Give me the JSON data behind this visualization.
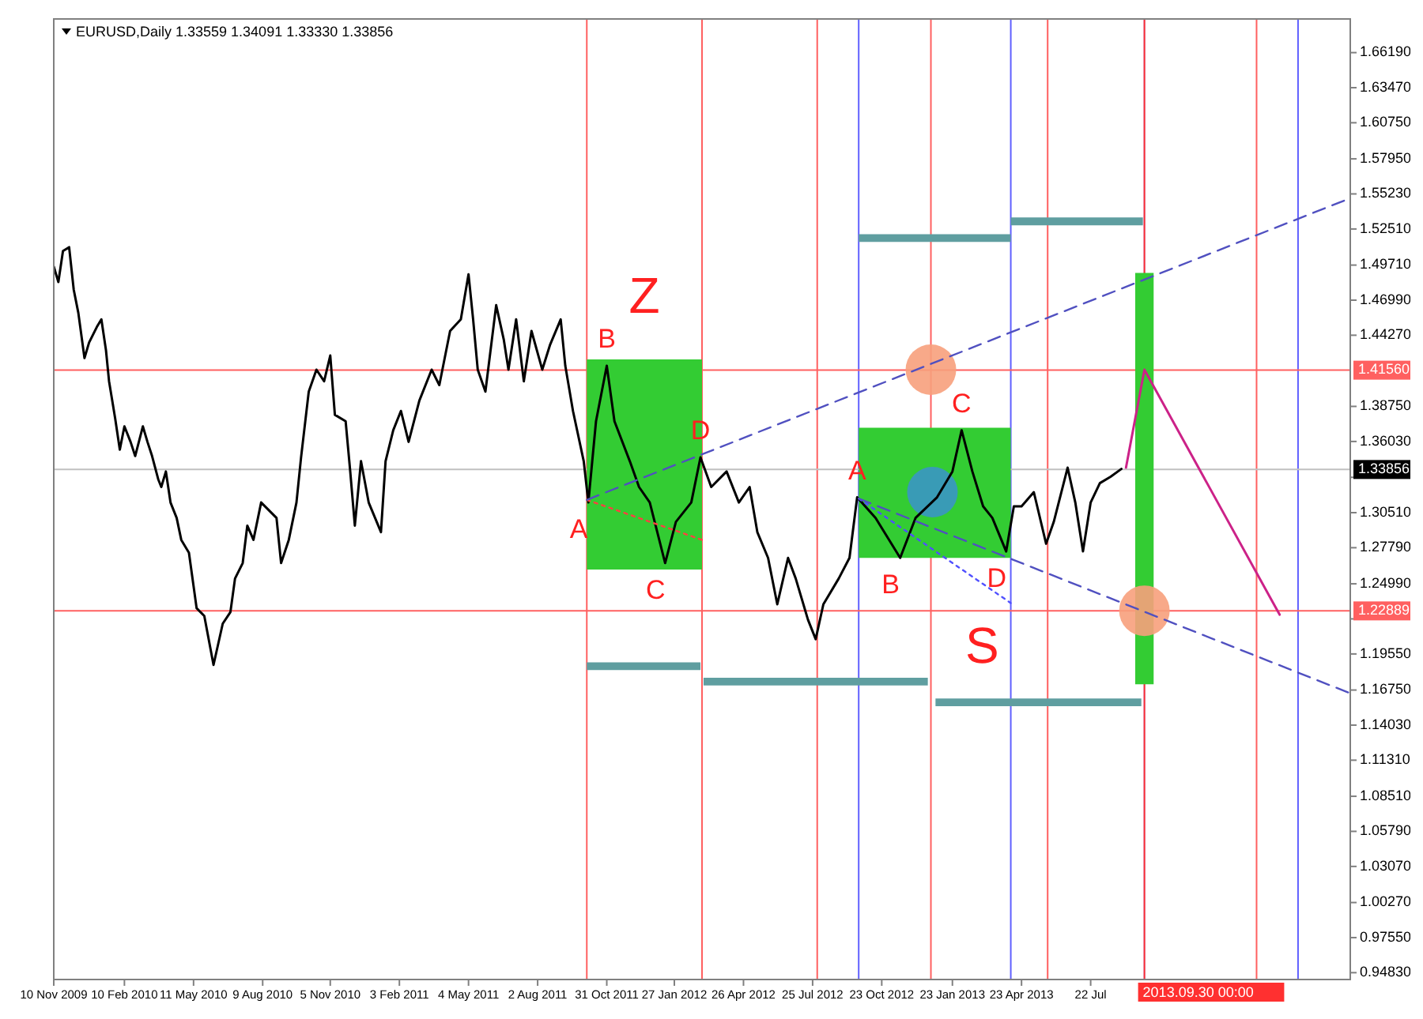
{
  "chart_data": {
    "type": "line",
    "title": "EURUSD,Daily  1.33559 1.34091 1.33330 1.33856",
    "xlim": [
      "2009-11-10",
      "2014-06-25"
    ],
    "ylim": [
      0.943,
      1.688
    ],
    "xticks": [
      {
        "value": "2009-11-10",
        "label": "10 Nov 2009"
      },
      {
        "value": "2010-02-10",
        "label": "10 Feb 2010"
      },
      {
        "value": "2010-05-11",
        "label": "11 May 2010"
      },
      {
        "value": "2010-08-09",
        "label": "9 Aug 2010"
      },
      {
        "value": "2010-11-05",
        "label": "5 Nov 2010"
      },
      {
        "value": "2011-02-03",
        "label": "3 Feb 2011"
      },
      {
        "value": "2011-05-04",
        "label": "4 May 2011"
      },
      {
        "value": "2011-08-02",
        "label": "2 Aug 2011"
      },
      {
        "value": "2011-10-31",
        "label": "31 Oct 2011"
      },
      {
        "value": "2012-01-27",
        "label": "27 Jan 2012"
      },
      {
        "value": "2012-04-26",
        "label": "26 Apr 2012"
      },
      {
        "value": "2012-07-25",
        "label": "25 Jul 2012"
      },
      {
        "value": "2012-10-23",
        "label": "23 Oct 2012"
      },
      {
        "value": "2013-01-23",
        "label": "23 Jan 2013"
      },
      {
        "value": "2013-04-23",
        "label": "23 Apr 2013"
      },
      {
        "value": "2013-07-22",
        "label": "22 Jul"
      }
    ],
    "yticks": [
      {
        "value": 0.9483,
        "label": "0.94830"
      },
      {
        "value": 0.9755,
        "label": "0.97550"
      },
      {
        "value": 1.0027,
        "label": "1.00270"
      },
      {
        "value": 1.0307,
        "label": "1.03070"
      },
      {
        "value": 1.0579,
        "label": "1.05790"
      },
      {
        "value": 1.0851,
        "label": "1.08510"
      },
      {
        "value": 1.1131,
        "label": "1.11310"
      },
      {
        "value": 1.1403,
        "label": "1.14030"
      },
      {
        "value": 1.1675,
        "label": "1.16750"
      },
      {
        "value": 1.1955,
        "label": "1.19550"
      },
      {
        "value": 1.2227,
        "label": null
      },
      {
        "value": 1.2499,
        "label": "1.24990"
      },
      {
        "value": 1.2779,
        "label": "1.27790"
      },
      {
        "value": 1.3051,
        "label": "1.30510"
      },
      {
        "value": 1.3325,
        "label": null
      },
      {
        "value": 1.3603,
        "label": "1.36030"
      },
      {
        "value": 1.3875,
        "label": "1.38750"
      },
      {
        "value": 1.4427,
        "label": "1.44270"
      },
      {
        "value": 1.4699,
        "label": "1.46990"
      },
      {
        "value": 1.4971,
        "label": "1.49710"
      },
      {
        "value": 1.5251,
        "label": "1.52510"
      },
      {
        "value": 1.5523,
        "label": "1.55230"
      },
      {
        "value": 1.5795,
        "label": "1.57950"
      },
      {
        "value": 1.6075,
        "label": "1.60750"
      },
      {
        "value": 1.6347,
        "label": "1.63470"
      },
      {
        "value": 1.6619,
        "label": "1.66190"
      }
    ],
    "ref_lines": [
      {
        "axis": "x",
        "value": "2011-10-05",
        "color": "#ff6060"
      },
      {
        "axis": "x",
        "value": "2012-03-03",
        "color": "#ff6060"
      },
      {
        "axis": "x",
        "value": "2012-07-31",
        "color": "#ff6060"
      },
      {
        "axis": "x",
        "value": "2012-12-26",
        "color": "#ff6060"
      },
      {
        "axis": "x",
        "value": "2013-05-27",
        "color": "#ff6060"
      },
      {
        "axis": "x",
        "value": "2014-02-23",
        "color": "#ff6060"
      },
      {
        "axis": "x",
        "value": "2012-09-23",
        "color": "#6060ff"
      },
      {
        "axis": "x",
        "value": "2013-04-09",
        "color": "#6060ff"
      },
      {
        "axis": "x",
        "value": "2014-04-18",
        "color": "#6060ff"
      },
      {
        "axis": "x",
        "value": "2013-09-30",
        "color": "#a0a0ff"
      },
      {
        "axis": "x",
        "value": "2013-09-30",
        "color": "#ff3030",
        "label": "2013.09.30 00:00"
      },
      {
        "axis": "y",
        "value": 1.4156,
        "color": "#ff6060",
        "label": "1.41560"
      },
      {
        "axis": "y",
        "value": 1.22889,
        "color": "#ff6060",
        "label": "1.22889"
      },
      {
        "axis": "y",
        "value": 1.33856,
        "color": "#c0c0c0",
        "label": "1.33856"
      }
    ],
    "annotations": [
      "Z",
      "S",
      {
        "text": "B",
        "x": "2011-10-31",
        "y": 1.419
      },
      {
        "text": "D",
        "x": "2012-03-01",
        "y": 1.348
      },
      {
        "text": "A",
        "x": "2011-10-07",
        "y": 1.313
      },
      {
        "text": "C",
        "x": "2012-01-15",
        "y": 1.266
      },
      {
        "text": "A",
        "x": "2012-09-21",
        "y": 1.317
      },
      {
        "text": "C",
        "x": "2013-02-04",
        "y": 1.369
      },
      {
        "text": "B",
        "x": "2012-11-16",
        "y": 1.27
      },
      {
        "text": "D",
        "x": "2013-04-03",
        "y": 1.275
      }
    ],
    "series": [
      {
        "type": "line",
        "color": "#33cc33",
        "x": [
          "2011-10-05",
          "2012-03-03"
        ],
        "values": [
          null,
          null
        ],
        "lower": [
          1.261,
          1.261
        ],
        "upper": [
          1.424,
          1.424
        ]
      },
      {
        "type": "line",
        "color": "#33cc33",
        "x": [
          "2012-09-23",
          "2013-04-09"
        ],
        "values": [
          null,
          null
        ],
        "lower": [
          1.27,
          1.27
        ],
        "upper": [
          1.371,
          1.371
        ]
      },
      {
        "type": "line",
        "color": "#33cc33",
        "x": [
          "2013-09-18",
          "2013-10-12"
        ],
        "values": [
          null,
          null
        ],
        "lower": [
          1.172,
          1.172
        ],
        "upper": [
          1.491,
          1.491
        ]
      },
      {
        "type": "scatter",
        "marker": "circle",
        "color": "#f7a07c",
        "x": [
          "2012-12-26"
        ],
        "values": [
          1.416
        ]
      },
      {
        "type": "scatter",
        "marker": "circle",
        "color": "#f7a07c",
        "x": [
          "2013-09-30"
        ],
        "values": [
          1.229
        ]
      },
      {
        "type": "scatter",
        "marker": "circle",
        "color": "#3a96c4",
        "x": [
          "2012-12-28"
        ],
        "values": [
          1.321
        ]
      },
      {
        "color": "#000000",
        "x": [
          "2009-11-10",
          "2009-11-16",
          "2009-11-22",
          "2009-11-30",
          "2009-12-06",
          "2009-12-12",
          "2009-12-20",
          "2009-12-26",
          "2010-01-05",
          "2010-01-11",
          "2010-01-17",
          "2010-01-21",
          "2010-01-29",
          "2010-02-04",
          "2010-02-10",
          "2010-02-18",
          "2010-02-24",
          "2010-03-06",
          "2010-03-12",
          "2010-03-18",
          "2010-03-26",
          "2010-03-30",
          "2010-04-05",
          "2010-04-11",
          "2010-04-19",
          "2010-04-25",
          "2010-05-05",
          "2010-05-15",
          "2010-05-25",
          "2010-06-06",
          "2010-06-18",
          "2010-06-28",
          "2010-07-04",
          "2010-07-14",
          "2010-07-20",
          "2010-07-28",
          "2010-08-07",
          "2010-08-27",
          "2010-09-02",
          "2010-09-12",
          "2010-09-22",
          "2010-09-28",
          "2010-10-08",
          "2010-10-18",
          "2010-10-28",
          "2010-11-05",
          "2010-11-11",
          "2010-11-25",
          "2010-12-01",
          "2010-12-07",
          "2010-12-15",
          "2010-12-25",
          "2011-01-10",
          "2011-01-16",
          "2011-01-26",
          "2011-02-05",
          "2011-02-15",
          "2011-03-01",
          "2011-03-17",
          "2011-03-27",
          "2011-04-10",
          "2011-04-24",
          "2011-05-04",
          "2011-05-10",
          "2011-05-16",
          "2011-05-26",
          "2011-06-09",
          "2011-06-19",
          "2011-06-25",
          "2011-07-05",
          "2011-07-15",
          "2011-07-25",
          "2011-08-08",
          "2011-08-18",
          "2011-09-01",
          "2011-09-07",
          "2011-09-17",
          "2011-10-01",
          "2011-10-07",
          "2011-10-17",
          "2011-10-31",
          "2011-11-10",
          "2011-11-30",
          "2011-12-12",
          "2011-12-26",
          "2012-01-15",
          "2012-01-29",
          "2012-02-18",
          "2012-03-01",
          "2012-03-15",
          "2012-04-04",
          "2012-04-20",
          "2012-05-04",
          "2012-05-14",
          "2012-05-28",
          "2012-06-09",
          "2012-06-23",
          "2012-07-03",
          "2012-07-19",
          "2012-07-29",
          "2012-08-08",
          "2012-08-28",
          "2012-09-11",
          "2012-09-21",
          "2012-10-15",
          "2012-11-16",
          "2012-12-06",
          "2013-01-03",
          "2013-01-23",
          "2013-02-04",
          "2013-02-18",
          "2013-03-04",
          "2013-03-16",
          "2013-04-03",
          "2013-04-13",
          "2013-04-23",
          "2013-05-09",
          "2013-05-25",
          "2013-06-04",
          "2013-06-22",
          "2013-07-02",
          "2013-07-12",
          "2013-07-22",
          "2013-08-03",
          "2013-08-17",
          "2013-08-31"
        ],
        "values": [
          1.496,
          1.484,
          1.508,
          1.511,
          1.478,
          1.46,
          1.425,
          1.437,
          1.449,
          1.455,
          1.431,
          1.407,
          1.378,
          1.354,
          1.372,
          1.36,
          1.349,
          1.372,
          1.36,
          1.349,
          1.331,
          1.325,
          1.337,
          1.313,
          1.301,
          1.284,
          1.274,
          1.231,
          1.225,
          1.187,
          1.219,
          1.228,
          1.254,
          1.266,
          1.295,
          1.284,
          1.313,
          1.301,
          1.266,
          1.284,
          1.313,
          1.348,
          1.399,
          1.416,
          1.407,
          1.427,
          1.381,
          1.376,
          1.337,
          1.295,
          1.345,
          1.313,
          1.29,
          1.345,
          1.369,
          1.384,
          1.36,
          1.392,
          1.416,
          1.404,
          1.446,
          1.455,
          1.49,
          1.455,
          1.416,
          1.399,
          1.466,
          1.439,
          1.416,
          1.455,
          1.407,
          1.446,
          1.416,
          1.435,
          1.455,
          1.419,
          1.384,
          1.345,
          1.313,
          1.376,
          1.419,
          1.376,
          1.345,
          1.325,
          1.313,
          1.266,
          1.298,
          1.313,
          1.348,
          1.325,
          1.337,
          1.313,
          1.325,
          1.29,
          1.27,
          1.234,
          1.27,
          1.254,
          1.222,
          1.207,
          1.234,
          1.254,
          1.27,
          1.317,
          1.301,
          1.27,
          1.301,
          1.317,
          1.337,
          1.369,
          1.337,
          1.31,
          1.301,
          1.275,
          1.31,
          1.31,
          1.321,
          1.281,
          1.298,
          1.34,
          1.313,
          1.275,
          1.313,
          1.328,
          1.333,
          1.339
        ]
      },
      {
        "type": "line",
        "color": "#ff4040",
        "line_style": "dotted",
        "x": [
          "2011-10-05",
          "2012-03-03"
        ],
        "values": [
          1.315,
          1.284
        ]
      },
      {
        "type": "line",
        "color": "#5050ff",
        "line_style": "dotted",
        "x": [
          "2012-09-23",
          "2013-04-09"
        ],
        "values": [
          1.316,
          1.235
        ]
      },
      {
        "type": "line",
        "color": "#5050c0",
        "line_style": "dashed",
        "x": [
          "2011-10-05",
          "2014-06-25"
        ],
        "values": [
          1.315,
          1.549
        ]
      },
      {
        "type": "line",
        "color": "#5050c0",
        "line_style": "dashed",
        "x": [
          "2012-09-23",
          "2014-06-25"
        ],
        "values": [
          1.316,
          1.165
        ]
      },
      {
        "type": "line",
        "color": "#cc2288",
        "x": [
          "2013-09-06",
          "2013-09-30",
          "2014-03-25"
        ],
        "values": [
          1.34,
          1.416,
          1.226
        ]
      },
      {
        "type": "line",
        "color": "#5f9ea0",
        "x": [
          "2011-10-05",
          "2012-03-01"
        ],
        "values": [
          null,
          null
        ],
        "lower": [
          1.183,
          1.183
        ],
        "upper": [
          1.189,
          1.189
        ]
      },
      {
        "type": "line",
        "color": "#5f9ea0",
        "x": [
          "2012-03-05",
          "2012-12-22"
        ],
        "values": [
          null,
          null
        ],
        "lower": [
          1.171,
          1.171
        ],
        "upper": [
          1.177,
          1.177
        ]
      },
      {
        "type": "line",
        "color": "#5f9ea0",
        "x": [
          "2012-09-23",
          "2013-04-09"
        ],
        "values": [
          null,
          null
        ],
        "lower": [
          1.515,
          1.515
        ],
        "upper": [
          1.521,
          1.521
        ]
      },
      {
        "type": "line",
        "color": "#5f9ea0",
        "x": [
          "2013-04-09",
          "2013-09-28"
        ],
        "values": [
          null,
          null
        ],
        "lower": [
          1.528,
          1.528
        ],
        "upper": [
          1.534,
          1.534
        ]
      },
      {
        "type": "line",
        "color": "#5f9ea0",
        "x": [
          "2013-01-01",
          "2013-09-26"
        ],
        "values": [
          null,
          null
        ],
        "lower": [
          1.155,
          1.155
        ],
        "upper": [
          1.161,
          1.161
        ]
      }
    ]
  }
}
